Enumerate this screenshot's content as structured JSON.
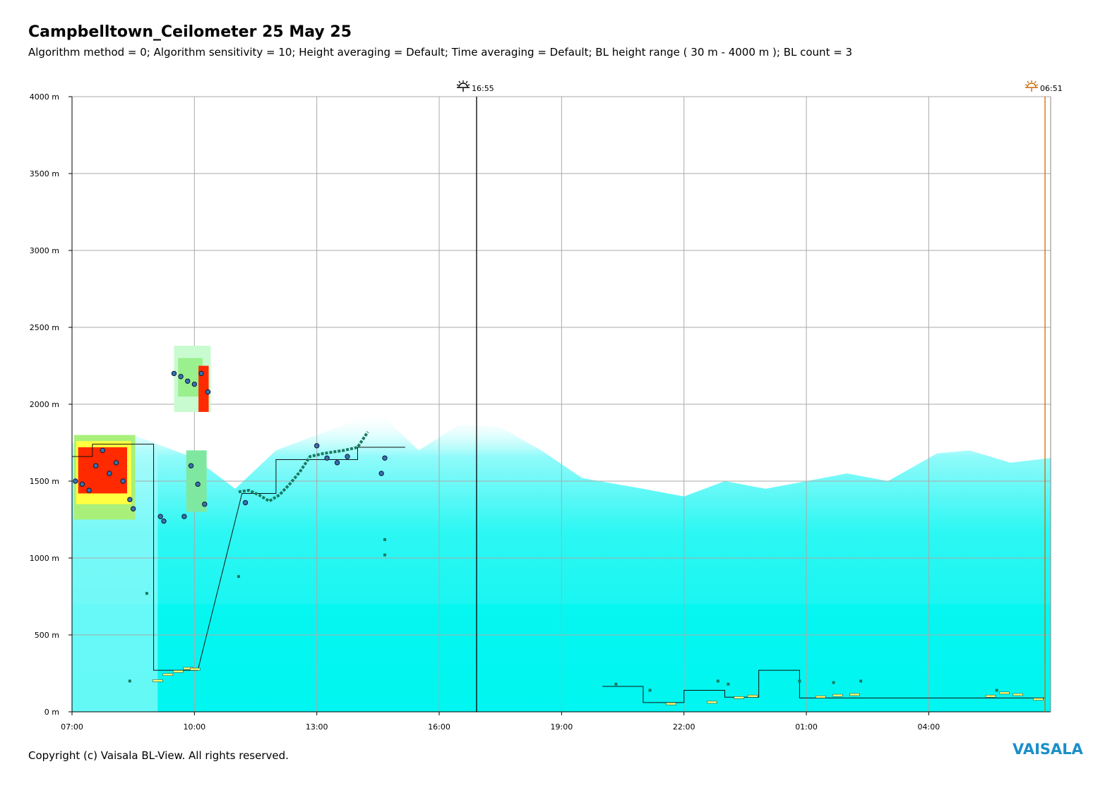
{
  "title": "Campbelltown_Ceilometer 25 May 25",
  "subtitle": "Algorithm method = 0; Algorithm sensitivity = 10; Height averaging = Default; Time averaging = Default; BL height range ( 30 m - 4000 m ); BL count = 3",
  "copyright": "Copyright (c) Vaisala BL-View. All rights reserved.",
  "logo": "VAISALA",
  "colors": {
    "background_signal": "#00f5f0",
    "weak_signal": "#b8fbfb",
    "strong_signal": "#ff2a00",
    "mid_signal": "#ffff40",
    "bl_marker": "#1a7a60",
    "cloud_marker": "#3a70b0",
    "sunset": "#000000",
    "sunrise": "#cc6a00",
    "grid": "#aaaaaa"
  },
  "chart_data": {
    "type": "heatmap",
    "xlabel": "",
    "ylabel": "",
    "y_unit": "m",
    "ylim": [
      0,
      4000
    ],
    "y_ticks": [
      "0 m",
      "500 m",
      "1000 m",
      "1500 m",
      "2000 m",
      "2500 m",
      "3000 m",
      "3500 m",
      "4000 m"
    ],
    "x_range_hours": [
      "07:00",
      "07:00+24h"
    ],
    "x_ticks": [
      "07:00",
      "10:00",
      "13:00",
      "16:00",
      "19:00",
      "22:00",
      "01:00",
      "04:00"
    ],
    "grid": true,
    "sun_events": [
      {
        "name": "sunset",
        "time": "16:55",
        "icon": "sunset-icon"
      },
      {
        "name": "sunrise",
        "time": "06:51",
        "icon": "sunrise-icon"
      }
    ],
    "bl_height_line": [
      {
        "x": "07:00",
        "y": 1660
      },
      {
        "x": "07:30",
        "y": 1660
      },
      {
        "x": "07:30",
        "y": 1740
      },
      {
        "x": "09:00",
        "y": 1740
      },
      {
        "x": "09:00",
        "y": 270
      },
      {
        "x": "10:05",
        "y": 270
      },
      {
        "x": "11:10",
        "y": 1420
      },
      {
        "x": "12:00",
        "y": 1420
      },
      {
        "x": "12:00",
        "y": 1640
      },
      {
        "x": "14:00",
        "y": 1640
      },
      {
        "x": "14:00",
        "y": 1720
      },
      {
        "x": "15:10",
        "y": 1720
      },
      {
        "x": "20:00",
        "y": 165
      },
      {
        "x": "21:00",
        "y": 165
      },
      {
        "x": "21:00",
        "y": 60
      },
      {
        "x": "22:00",
        "y": 60
      },
      {
        "x": "22:00",
        "y": 140
      },
      {
        "x": "23:00",
        "y": 140
      },
      {
        "x": "23:00",
        "y": 95
      },
      {
        "x": "23:50",
        "y": 95
      },
      {
        "x": "23:50",
        "y": 270
      },
      {
        "x": "00:50",
        "y": 270
      },
      {
        "x": "00:50",
        "y": 90
      },
      {
        "x": "03:00",
        "y": 90
      },
      {
        "x": "04:55",
        "y": 90
      },
      {
        "x": "06:50",
        "y": 90
      }
    ],
    "cloud_base_points": [
      {
        "x": "07:05",
        "y": 1500
      },
      {
        "x": "07:15",
        "y": 1480
      },
      {
        "x": "07:25",
        "y": 1440
      },
      {
        "x": "07:35",
        "y": 1600
      },
      {
        "x": "07:45",
        "y": 1700
      },
      {
        "x": "07:55",
        "y": 1550
      },
      {
        "x": "08:05",
        "y": 1620
      },
      {
        "x": "08:15",
        "y": 1500
      },
      {
        "x": "08:25",
        "y": 1380
      },
      {
        "x": "08:30",
        "y": 1320
      },
      {
        "x": "09:10",
        "y": 1270
      },
      {
        "x": "09:15",
        "y": 1240
      },
      {
        "x": "09:30",
        "y": 2200
      },
      {
        "x": "09:40",
        "y": 2180
      },
      {
        "x": "09:50",
        "y": 2150
      },
      {
        "x": "10:00",
        "y": 2130
      },
      {
        "x": "10:10",
        "y": 2200
      },
      {
        "x": "10:20",
        "y": 2080
      },
      {
        "x": "09:45",
        "y": 1270
      },
      {
        "x": "09:55",
        "y": 1600
      },
      {
        "x": "10:05",
        "y": 1480
      },
      {
        "x": "10:15",
        "y": 1350
      },
      {
        "x": "11:15",
        "y": 1360
      },
      {
        "x": "13:00",
        "y": 1730
      },
      {
        "x": "13:15",
        "y": 1650
      },
      {
        "x": "13:30",
        "y": 1620
      },
      {
        "x": "13:45",
        "y": 1660
      },
      {
        "x": "14:40",
        "y": 1650
      },
      {
        "x": "14:35",
        "y": 1550
      }
    ]
  }
}
